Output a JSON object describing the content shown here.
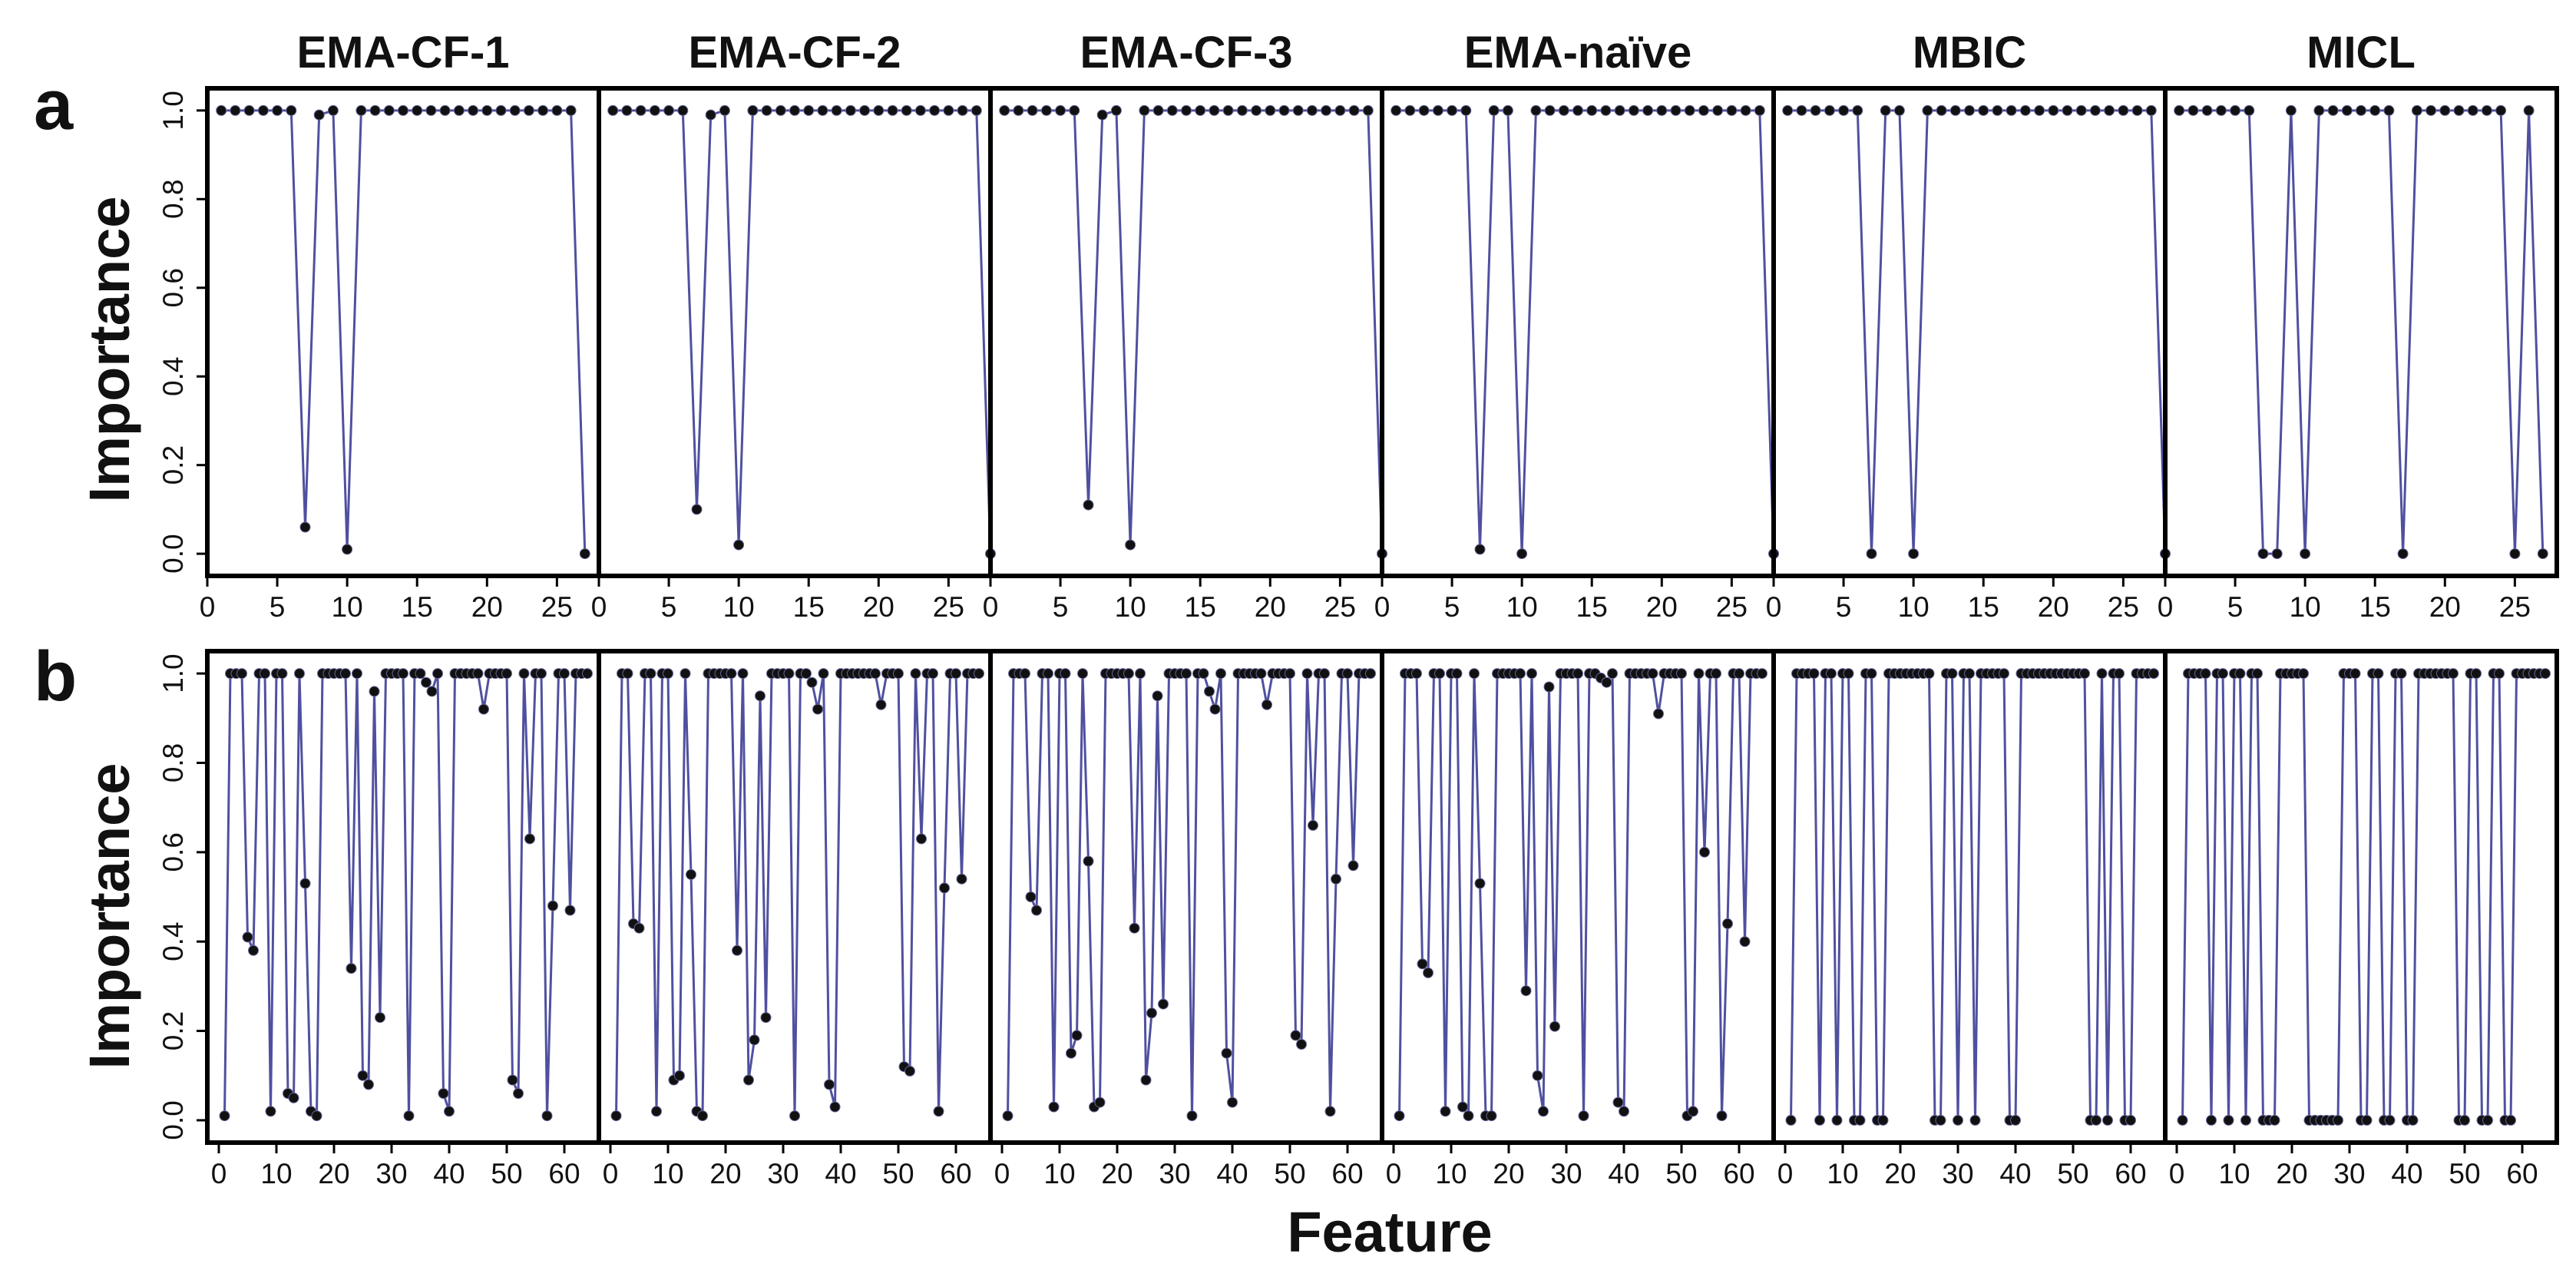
{
  "figure": {
    "y_axis_label": "Importance",
    "x_axis_label": "Feature",
    "colors": {
      "line": "#5050a0",
      "marker": "#111111",
      "frame": "#000000"
    }
  },
  "chart_data": [
    {
      "row": "a",
      "type": "line",
      "xlim": [
        0,
        28
      ],
      "ylim": [
        -0.05,
        1.05
      ],
      "xticks": [
        0,
        5,
        10,
        15,
        20,
        25
      ],
      "yticks": [
        0.0,
        0.2,
        0.4,
        0.6,
        0.8,
        1.0
      ],
      "ytick_labels": [
        "0.0",
        "0.2",
        "0.4",
        "0.6",
        "0.8",
        "1.0"
      ],
      "panels": [
        {
          "title": "EMA-CF-1",
          "values": [
            1,
            1,
            1,
            1,
            1,
            1,
            0.06,
            0.99,
            1,
            0.01,
            1,
            1,
            1,
            1,
            1,
            1,
            1,
            1,
            1,
            1,
            1,
            1,
            1,
            1,
            1,
            1,
            0
          ]
        },
        {
          "title": "EMA-CF-2",
          "values": [
            1,
            1,
            1,
            1,
            1,
            1,
            0.1,
            0.99,
            1,
            0.02,
            1,
            1,
            1,
            1,
            1,
            1,
            1,
            1,
            1,
            1,
            1,
            1,
            1,
            1,
            1,
            1,
            1,
            0
          ]
        },
        {
          "title": "EMA-CF-3",
          "values": [
            1,
            1,
            1,
            1,
            1,
            1,
            0.11,
            0.99,
            1,
            0.02,
            1,
            1,
            1,
            1,
            1,
            1,
            1,
            1,
            1,
            1,
            1,
            1,
            1,
            1,
            1,
            1,
            1,
            0
          ]
        },
        {
          "title": "EMA-naïve",
          "values": [
            1,
            1,
            1,
            1,
            1,
            1,
            0.01,
            1,
            1,
            0,
            1,
            1,
            1,
            1,
            1,
            1,
            1,
            1,
            1,
            1,
            1,
            1,
            1,
            1,
            1,
            1,
            1,
            0
          ]
        },
        {
          "title": "MBIC",
          "values": [
            1,
            1,
            1,
            1,
            1,
            1,
            0,
            1,
            1,
            0,
            1,
            1,
            1,
            1,
            1,
            1,
            1,
            1,
            1,
            1,
            1,
            1,
            1,
            1,
            1,
            1,
            1,
            0
          ]
        },
        {
          "title": "MICL",
          "values": [
            1,
            1,
            1,
            1,
            1,
            1,
            0,
            0,
            1,
            0,
            1,
            1,
            1,
            1,
            1,
            1,
            0,
            1,
            1,
            1,
            1,
            1,
            1,
            1,
            0,
            1,
            0
          ]
        }
      ]
    },
    {
      "row": "b",
      "type": "line",
      "xlim": [
        -2,
        66
      ],
      "ylim": [
        -0.05,
        1.05
      ],
      "xticks": [
        0,
        10,
        20,
        30,
        40,
        50,
        60
      ],
      "yticks": [
        0.0,
        0.2,
        0.4,
        0.6,
        0.8,
        1.0
      ],
      "ytick_labels": [
        "0.0",
        "0.2",
        "0.4",
        "0.6",
        "0.8",
        "1.0"
      ],
      "panels": [
        {
          "title": "EMA-CF-1",
          "values": [
            0.01,
            1,
            1,
            1,
            0.41,
            0.38,
            1,
            1,
            0.02,
            1,
            1,
            0.06,
            0.05,
            1,
            0.53,
            0.02,
            0.01,
            1,
            1,
            1,
            1,
            1,
            0.34,
            1,
            0.1,
            0.08,
            0.96,
            0.23,
            1,
            1,
            1,
            1,
            0.01,
            1,
            1,
            0.98,
            0.96,
            1,
            0.06,
            0.02,
            1,
            1,
            1,
            1,
            1,
            0.92,
            1,
            1,
            1,
            1,
            0.09,
            0.06,
            1,
            0.63,
            1,
            1,
            0.01,
            0.48,
            1,
            1,
            0.47,
            1,
            1,
            1
          ]
        },
        {
          "title": "EMA-CF-2",
          "values": [
            0.01,
            1,
            1,
            0.44,
            0.43,
            1,
            1,
            0.02,
            1,
            1,
            0.09,
            0.1,
            1,
            0.55,
            0.02,
            0.01,
            1,
            1,
            1,
            1,
            1,
            0.38,
            1,
            0.09,
            0.18,
            0.95,
            0.23,
            1,
            1,
            1,
            1,
            0.01,
            1,
            1,
            0.98,
            0.92,
            1,
            0.08,
            0.03,
            1,
            1,
            1,
            1,
            1,
            1,
            1,
            0.93,
            1,
            1,
            1,
            0.12,
            0.11,
            1,
            0.63,
            1,
            1,
            0.02,
            0.52,
            1,
            1,
            0.54,
            1,
            1,
            1
          ]
        },
        {
          "title": "EMA-CF-3",
          "values": [
            0.01,
            1,
            1,
            1,
            0.5,
            0.47,
            1,
            1,
            0.03,
            1,
            1,
            0.15,
            0.19,
            1,
            0.58,
            0.03,
            0.04,
            1,
            1,
            1,
            1,
            1,
            0.43,
            1,
            0.09,
            0.24,
            0.95,
            0.26,
            1,
            1,
            1,
            1,
            0.01,
            1,
            1,
            0.96,
            0.92,
            1,
            0.15,
            0.04,
            1,
            1,
            1,
            1,
            1,
            0.93,
            1,
            1,
            1,
            1,
            0.19,
            0.17,
            1,
            0.66,
            1,
            1,
            0.02,
            0.54,
            1,
            1,
            0.57,
            1,
            1,
            1
          ]
        },
        {
          "title": "EMA-naïve",
          "values": [
            0.01,
            1,
            1,
            1,
            0.35,
            0.33,
            1,
            1,
            0.02,
            1,
            1,
            0.03,
            0.01,
            1,
            0.53,
            0.01,
            0.01,
            1,
            1,
            1,
            1,
            1,
            0.29,
            1,
            0.1,
            0.02,
            0.97,
            0.21,
            1,
            1,
            1,
            1,
            0.01,
            1,
            1,
            0.99,
            0.98,
            1,
            0.04,
            0.02,
            1,
            1,
            1,
            1,
            1,
            0.91,
            1,
            1,
            1,
            1,
            0.01,
            0.02,
            1,
            0.6,
            1,
            1,
            0.01,
            0.44,
            1,
            1,
            0.4,
            1,
            1,
            1
          ]
        },
        {
          "title": "MBIC",
          "values": [
            0,
            1,
            1,
            1,
            1,
            0,
            1,
            1,
            0,
            1,
            1,
            0,
            0,
            1,
            1,
            0,
            0,
            1,
            1,
            1,
            1,
            1,
            1,
            1,
            1,
            0,
            0,
            1,
            1,
            0,
            1,
            1,
            0,
            1,
            1,
            1,
            1,
            1,
            0,
            0,
            1,
            1,
            1,
            1,
            1,
            1,
            1,
            1,
            1,
            1,
            1,
            1,
            0,
            0,
            1,
            0,
            1,
            1,
            0,
            0,
            1,
            1,
            1,
            1
          ]
        },
        {
          "title": "MICL",
          "values": [
            0,
            1,
            1,
            1,
            1,
            0,
            1,
            1,
            0,
            1,
            1,
            0,
            1,
            1,
            0,
            0,
            0,
            1,
            1,
            1,
            1,
            1,
            0,
            0,
            0,
            0,
            0,
            0,
            1,
            1,
            1,
            0,
            0,
            1,
            1,
            0,
            0,
            1,
            1,
            0,
            0,
            1,
            1,
            1,
            1,
            1,
            1,
            1,
            0,
            0,
            1,
            1,
            0,
            0,
            1,
            1,
            0,
            0,
            1,
            1,
            1,
            1,
            1,
            1
          ]
        }
      ]
    }
  ]
}
